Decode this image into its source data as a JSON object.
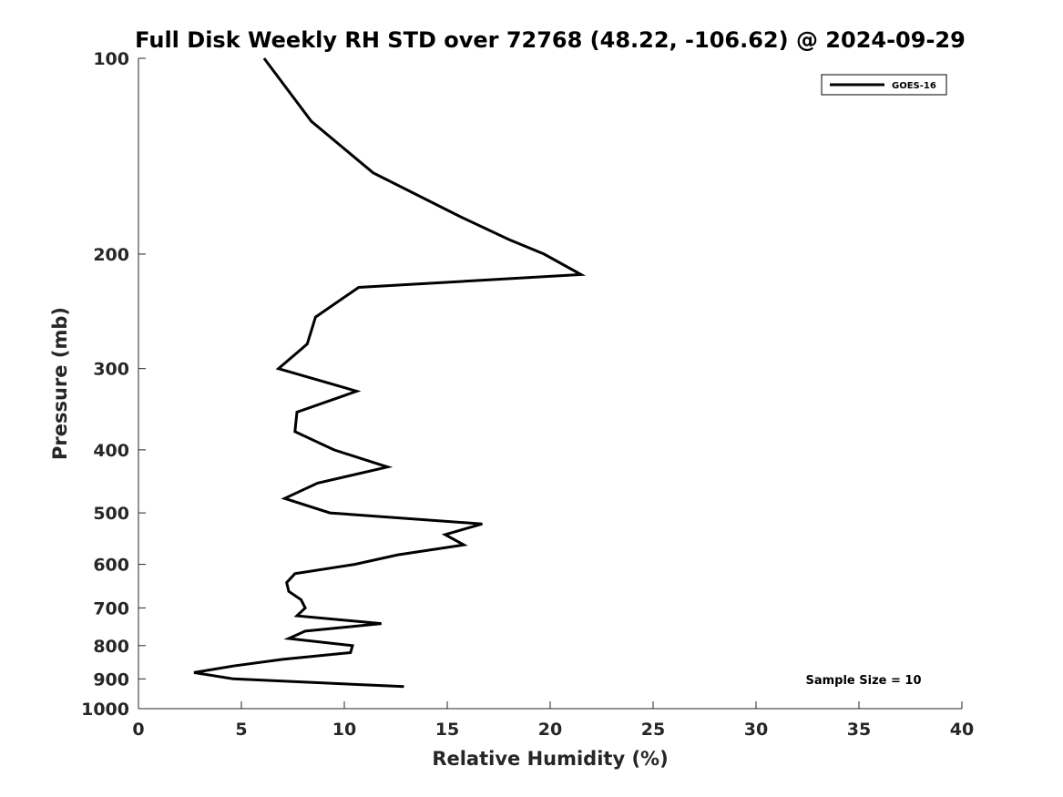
{
  "chart_data": {
    "type": "line",
    "title": "Full Disk Weekly RH STD over 72768 (48.22, -106.62) @ 2024-09-29",
    "xlabel": "Relative Humidity (%)",
    "ylabel": "Pressure (mb)",
    "xlim": [
      0,
      40
    ],
    "ylim": [
      1000,
      100
    ],
    "yscale": "log",
    "y_reversed": true,
    "xticks": [
      0,
      5,
      10,
      15,
      20,
      25,
      30,
      35,
      40
    ],
    "yticks": [
      100,
      200,
      300,
      400,
      500,
      600,
      700,
      800,
      900,
      1000
    ],
    "grid": false,
    "legend_position": "top-right",
    "series": [
      {
        "name": "GOES-16",
        "color": "#000000",
        "x": [
          6.1,
          8.4,
          11.4,
          15.6,
          18.0,
          19.7,
          21.5,
          10.7,
          8.6,
          8.2,
          6.8,
          10.6,
          7.7,
          7.6,
          9.5,
          12.1,
          8.7,
          7.1,
          9.3,
          16.7,
          14.9,
          15.8,
          12.6,
          10.5,
          7.6,
          7.2,
          7.3,
          7.9,
          8.1,
          7.7,
          11.8,
          8.1,
          7.3,
          10.4,
          10.3,
          7.0,
          4.6,
          2.7,
          4.6,
          12.9
        ],
        "y": [
          100,
          125,
          150,
          175,
          190,
          200,
          215,
          225,
          250,
          275,
          300,
          325,
          350,
          375,
          400,
          425,
          450,
          475,
          500,
          520,
          540,
          560,
          580,
          600,
          620,
          640,
          660,
          680,
          700,
          720,
          740,
          760,
          780,
          800,
          820,
          840,
          860,
          880,
          900,
          925
        ]
      }
    ],
    "annotations": [
      {
        "text": "Sample Size = 10"
      }
    ]
  }
}
